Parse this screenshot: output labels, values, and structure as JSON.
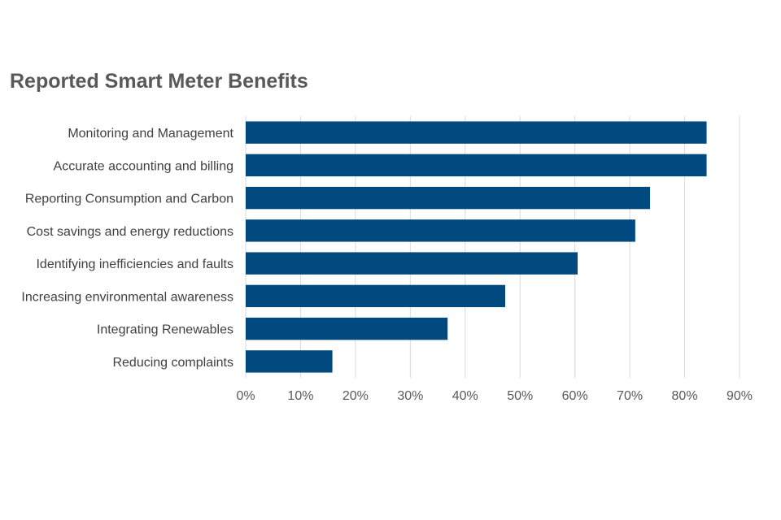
{
  "chart_data": {
    "type": "bar",
    "orientation": "horizontal",
    "title": "Reported Smart Meter Benefits",
    "xlabel": "",
    "ylabel": "",
    "categories": [
      "Monitoring and Management",
      "Accurate accounting and billing",
      "Reporting Consumption and Carbon",
      "Cost savings and energy reductions",
      "Identifying inefficiencies and faults",
      "Increasing environmental awareness",
      "Integrating Renewables",
      "Reducing complaints"
    ],
    "values": [
      84,
      84,
      73.7,
      71,
      60.5,
      47.3,
      36.8,
      15.8
    ],
    "xlim": [
      0,
      90
    ],
    "xticks": [
      0,
      10,
      20,
      30,
      40,
      50,
      60,
      70,
      80,
      90
    ],
    "tick_labels": [
      "0%",
      "10%",
      "20%",
      "30%",
      "40%",
      "50%",
      "60%",
      "70%",
      "80%",
      "90%"
    ],
    "grid": true,
    "bar_color": "#004a80",
    "grid_color": "#d9d9d9"
  }
}
